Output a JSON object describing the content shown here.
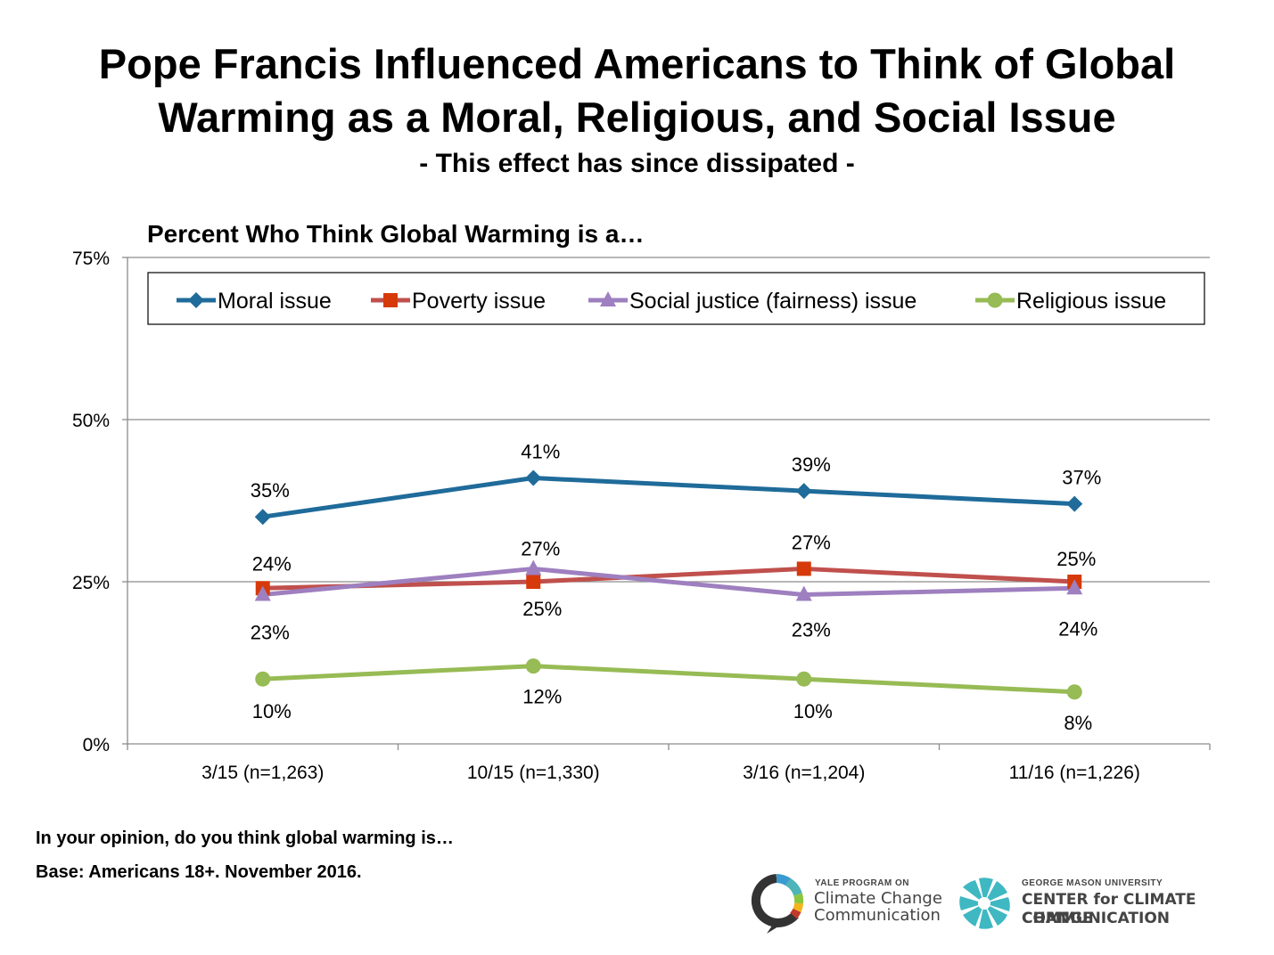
{
  "header": {
    "title_line1": "Pope Francis Influenced Americans to Think of Global",
    "title_line2": "Warming as a Moral, Religious, and Social Issue",
    "subtitle": "- This effect has since dissipated -"
  },
  "chart_data": {
    "type": "line",
    "title": "Percent Who Think Global Warming is a…",
    "categories": [
      "3/15 (n=1,263)",
      "10/15 (n=1,330)",
      "3/16 (n=1,204)",
      "11/16 (n=1,226)"
    ],
    "ylim": [
      0,
      75
    ],
    "yticks": [
      "0%",
      "25%",
      "50%",
      "75%"
    ],
    "ytick_values": [
      0,
      25,
      50,
      75
    ],
    "grid": true,
    "legend_position": "top",
    "series": [
      {
        "name": "Moral issue",
        "values": [
          35,
          41,
          39,
          37
        ],
        "labels": [
          "35%",
          "41%",
          "39%",
          "37%"
        ],
        "color": "#1f6b9a",
        "marker": "diamond"
      },
      {
        "name": "Poverty issue",
        "values": [
          24,
          25,
          27,
          25
        ],
        "labels": [
          "24%",
          "25%",
          "27%",
          "25%"
        ],
        "color": "#c0504d",
        "marker_color": "#d63a0a",
        "marker": "square"
      },
      {
        "name": "Social justice (fairness) issue",
        "values": [
          23,
          27,
          23,
          24
        ],
        "labels": [
          "23%",
          "27%",
          "23%",
          "24%"
        ],
        "color": "#9e7fbf",
        "marker": "triangle"
      },
      {
        "name": "Religious issue",
        "values": [
          10,
          12,
          10,
          8
        ],
        "labels": [
          "10%",
          "12%",
          "10%",
          "8%"
        ],
        "color": "#97bb55",
        "marker": "circle"
      }
    ]
  },
  "footer": {
    "question": "In your opinion, do you think global warming is…",
    "base": "Base: Americans 18+. November 2016."
  },
  "logos": {
    "yale_small": "YALE PROGRAM ON",
    "yale_line1": "Climate Change",
    "yale_line2": "Communication",
    "gmu_small": "GEORGE MASON UNIVERSITY",
    "gmu_line1": "CENTER for CLIMATE CHANGE",
    "gmu_line2": "COMMUNICATION"
  }
}
